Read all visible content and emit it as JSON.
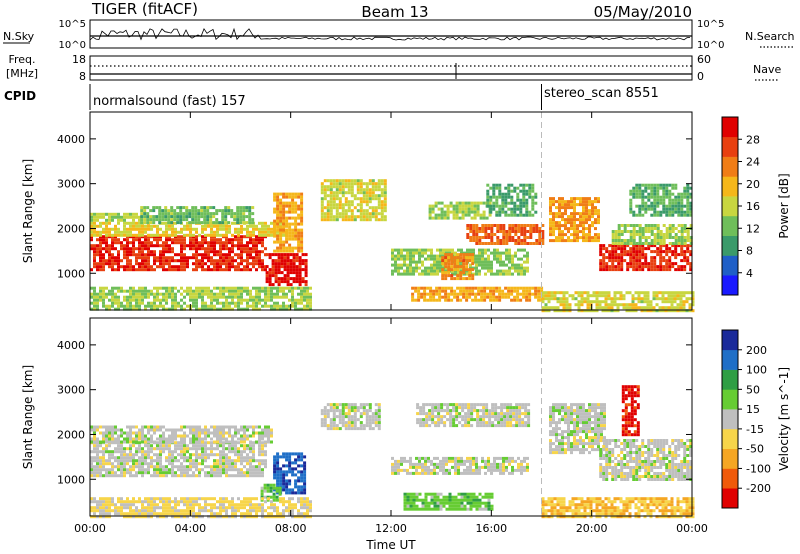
{
  "header": {
    "title": "TIGER (fitACF)",
    "beam": "Beam 13",
    "date": "05/May/2010"
  },
  "strip": {
    "nsky_label": "N.Sky",
    "nsearch_label": "N.Search",
    "nsky_ticks": [
      "10^5",
      "10^0"
    ],
    "nsearch_ticks": [
      "10^5",
      "10^0"
    ],
    "freq_label_line1": "Freq.",
    "freq_label_line2": "[MHz]",
    "freq_ticks": [
      "18",
      "8"
    ],
    "nave_label": "Nave",
    "nave_ticks": [
      "60",
      "0"
    ],
    "cpid_label": "CPID",
    "cpid_mode1": "normalsound (fast) 157",
    "cpid_mode2": "stereo_scan 8551",
    "mode_change_time_h": 18.0
  },
  "chart_data": [
    {
      "type": "heatmap",
      "title": "",
      "xlabel": "Time UT",
      "ylabel": "Slant Range [km]",
      "xlim": [
        0,
        24
      ],
      "ylim": [
        180,
        4600
      ],
      "xticks": [
        "00:00",
        "04:00",
        "08:00",
        "12:00",
        "16:00",
        "20:00",
        "00:00"
      ],
      "yticks": [
        1000,
        2000,
        3000,
        4000
      ],
      "colorbar": {
        "label": "Power [dB]",
        "ticks": [
          "4",
          "8",
          "12",
          "16",
          "20",
          "24",
          "28"
        ],
        "range": [
          0,
          31
        ],
        "colors": [
          "#1a1aff",
          "#1f5fc7",
          "#3a9a6a",
          "#6fbe5a",
          "#c8d640",
          "#f5b71a",
          "#f07d16",
          "#e84010",
          "#e00000"
        ]
      },
      "bands": [
        {
          "t0": 0.0,
          "t1": 7.0,
          "r0": 1100,
          "r1": 1850,
          "value": 27
        },
        {
          "t0": 7.0,
          "t1": 8.6,
          "r0": 750,
          "r1": 1450,
          "value": 29
        },
        {
          "t0": 0.0,
          "t1": 7.8,
          "r0": 1850,
          "r1": 2150,
          "value": 17
        },
        {
          "t0": 0.0,
          "t1": 2.0,
          "r0": 2150,
          "r1": 2350,
          "value": 14
        },
        {
          "t0": 2.0,
          "t1": 6.5,
          "r0": 2150,
          "r1": 2500,
          "value": 12
        },
        {
          "t0": 0.0,
          "t1": 8.8,
          "r0": 180,
          "r1": 700,
          "value": 14
        },
        {
          "t0": 7.3,
          "t1": 8.4,
          "r0": 1500,
          "r1": 2800,
          "value": 20
        },
        {
          "t0": 9.2,
          "t1": 11.8,
          "r0": 2200,
          "r1": 3100,
          "value": 16
        },
        {
          "t0": 13.5,
          "t1": 16.0,
          "r0": 2200,
          "r1": 2600,
          "value": 14
        },
        {
          "t0": 12.0,
          "t1": 17.5,
          "r0": 1000,
          "r1": 1550,
          "value": 13
        },
        {
          "t0": 14.0,
          "t1": 15.2,
          "r0": 900,
          "r1": 1450,
          "value": 22
        },
        {
          "t0": 12.8,
          "t1": 18.0,
          "r0": 400,
          "r1": 700,
          "value": 20
        },
        {
          "t0": 15.0,
          "t1": 18.0,
          "r0": 1650,
          "r1": 2100,
          "value": 24
        },
        {
          "t0": 15.8,
          "t1": 17.8,
          "r0": 2300,
          "r1": 3000,
          "value": 10
        },
        {
          "t0": 18.3,
          "t1": 20.3,
          "r0": 1700,
          "r1": 2700,
          "value": 21
        },
        {
          "t0": 20.3,
          "t1": 24.0,
          "r0": 1050,
          "r1": 1650,
          "value": 27
        },
        {
          "t0": 20.8,
          "t1": 24.0,
          "r0": 1650,
          "r1": 2100,
          "value": 14
        },
        {
          "t0": 21.5,
          "t1": 24.0,
          "r0": 2300,
          "r1": 3000,
          "value": 11
        },
        {
          "t0": 18.0,
          "t1": 24.0,
          "r0": 180,
          "r1": 600,
          "value": 16
        }
      ]
    },
    {
      "type": "heatmap",
      "title": "",
      "xlabel": "Time UT",
      "ylabel": "Slant Range [km]",
      "xlim": [
        0,
        24
      ],
      "ylim": [
        180,
        4600
      ],
      "xticks": [
        "00:00",
        "04:00",
        "08:00",
        "12:00",
        "16:00",
        "20:00",
        "00:00"
      ],
      "yticks": [
        1000,
        2000,
        3000,
        4000
      ],
      "colorbar": {
        "label": "Velocity [m s^-1]",
        "ticks": [
          "200",
          "100",
          "50",
          "15",
          "-15",
          "-50",
          "-100",
          "-200"
        ],
        "range": [
          -250,
          250
        ],
        "colors": [
          "#e00000",
          "#f05a0a",
          "#f5a623",
          "#f7d54a",
          "#bfbfbf",
          "#66cc33",
          "#2f9e44",
          "#1f6fc7",
          "#1a2a9a"
        ]
      },
      "bands": [
        {
          "t0": 0.0,
          "t1": 7.0,
          "r0": 1100,
          "r1": 1850,
          "value": 0
        },
        {
          "t0": 0.0,
          "t1": 7.2,
          "r0": 1850,
          "r1": 2200,
          "value": 0
        },
        {
          "t0": 7.3,
          "t1": 8.5,
          "r0": 700,
          "r1": 1600,
          "value": 180
        },
        {
          "t0": 6.8,
          "t1": 7.6,
          "r0": 500,
          "r1": 900,
          "value": 60
        },
        {
          "t0": 0.0,
          "t1": 8.8,
          "r0": 180,
          "r1": 600,
          "value": -40
        },
        {
          "t0": 9.2,
          "t1": 11.5,
          "r0": 2100,
          "r1": 2700,
          "value": 0
        },
        {
          "t0": 13.0,
          "t1": 17.5,
          "r0": 2200,
          "r1": 2700,
          "value": 0
        },
        {
          "t0": 12.0,
          "t1": 17.5,
          "r0": 1100,
          "r1": 1500,
          "value": 0
        },
        {
          "t0": 12.5,
          "t1": 16.0,
          "r0": 350,
          "r1": 700,
          "value": 60
        },
        {
          "t0": 18.3,
          "t1": 20.5,
          "r0": 1600,
          "r1": 2700,
          "value": 0
        },
        {
          "t0": 20.3,
          "t1": 24.0,
          "r0": 1000,
          "r1": 1900,
          "value": 0
        },
        {
          "t0": 21.2,
          "t1": 21.8,
          "r0": 2000,
          "r1": 3100,
          "value": -220
        },
        {
          "t0": 18.0,
          "t1": 24.0,
          "r0": 180,
          "r1": 600,
          "value": -80
        }
      ]
    }
  ]
}
